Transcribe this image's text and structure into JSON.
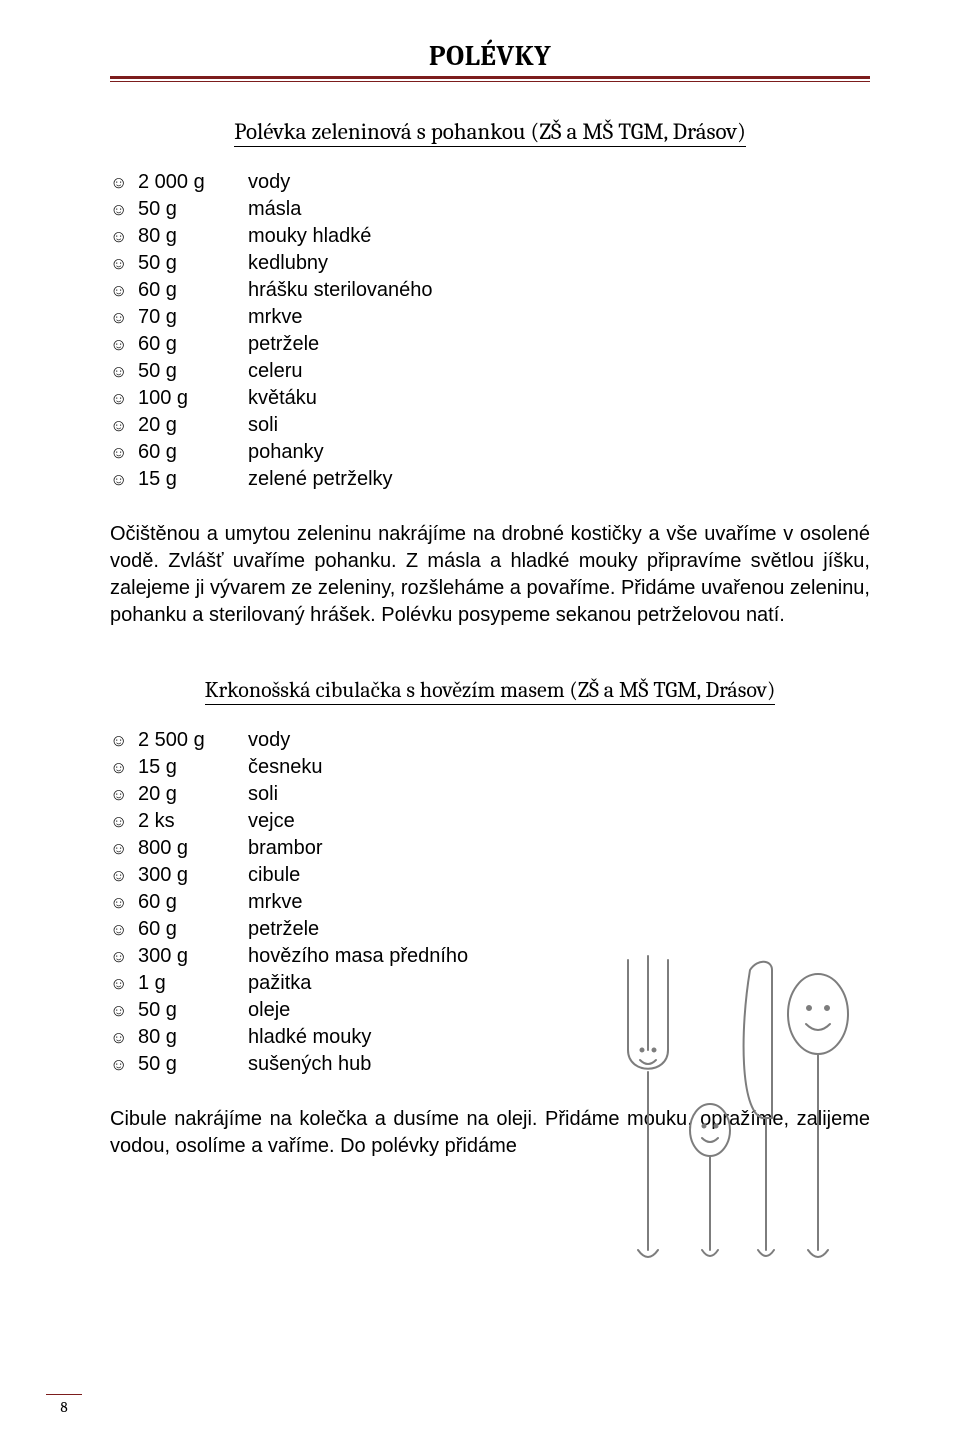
{
  "page": {
    "title": "POLÉVKY",
    "titleRuleColor": "#7c1d1d",
    "number": "8"
  },
  "recipe1": {
    "title": "Polévka zeleninová s pohankou (ZŠ a MŠ TGM, Drásov)",
    "ingredients": [
      {
        "amount": "2 000 g",
        "item": "vody"
      },
      {
        "amount": "50 g",
        "item": "másla"
      },
      {
        "amount": "80 g",
        "item": "mouky hladké"
      },
      {
        "amount": "50 g",
        "item": "kedlubny"
      },
      {
        "amount": "60 g",
        "item": "hrášku sterilovaného"
      },
      {
        "amount": "70 g",
        "item": "mrkve"
      },
      {
        "amount": "60 g",
        "item": "petržele"
      },
      {
        "amount": "50 g",
        "item": "celeru"
      },
      {
        "amount": "100 g",
        "item": "květáku"
      },
      {
        "amount": "20 g",
        "item": "soli"
      },
      {
        "amount": "60 g",
        "item": "pohanky"
      },
      {
        "amount": "15 g",
        "item": "zelené petrželky"
      }
    ],
    "instructions": "Očištěnou a umytou zeleninu nakrájíme na drobné kostičky a vše uvaříme v osolené vodě. Zvlášť uvaříme pohanku. Z másla a hladké mouky připravíme světlou jíšku, zalejeme ji vývarem ze zeleniny, rozšleháme a povaříme. Přidáme uvařenou zeleninu, pohanku a sterilovaný hrášek. Polévku posypeme sekanou petrželovou natí."
  },
  "recipe2": {
    "title": "Krkonošská cibulačka s hovězím masem (ZŠ a MŠ TGM, Drásov)",
    "ingredients": [
      {
        "amount": "2 500 g",
        "item": "vody"
      },
      {
        "amount": "15 g",
        "item": "česneku"
      },
      {
        "amount": "20 g",
        "item": "soli"
      },
      {
        "amount": "2 ks",
        "item": "vejce"
      },
      {
        "amount": "800 g",
        "item": "brambor"
      },
      {
        "amount": "300 g",
        "item": "cibule"
      },
      {
        "amount": "60 g",
        "item": "mrkve"
      },
      {
        "amount": "60 g",
        "item": "petržele"
      },
      {
        "amount": "300 g",
        "item": "hovězího masa předního"
      },
      {
        "amount": "1 g",
        "item": "pažitka"
      },
      {
        "amount": "50 g",
        "item": "oleje"
      },
      {
        "amount": "80 g",
        "item": "hladké mouky"
      },
      {
        "amount": "50 g",
        "item": "sušených hub"
      }
    ],
    "instructions": "Cibule nakrájíme na kolečka a dusíme na oleji. Přidáme mouku, opražíme, zalijeme vodou, osolíme a vaříme. Do polévky přidáme"
  },
  "illustration": {
    "strokeColor": "#7d7d7d",
    "strokeWidth": 2
  }
}
